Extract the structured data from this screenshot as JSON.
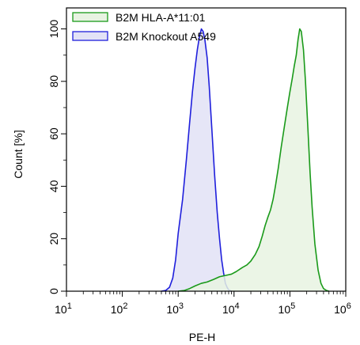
{
  "chart_data": {
    "type": "area",
    "xlabel": "PE-H",
    "ylabel": "Count [%]",
    "x_scale": "log",
    "xlim": [
      10,
      1000000
    ],
    "ylim": [
      0,
      108
    ],
    "grid": false,
    "legend_placement": "top-left",
    "x_ticks": [
      {
        "value": 10,
        "base": "10",
        "exp": "1"
      },
      {
        "value": 100,
        "base": "10",
        "exp": "2"
      },
      {
        "value": 1000,
        "base": "10",
        "exp": "3"
      },
      {
        "value": 10000,
        "base": "10",
        "exp": "4"
      },
      {
        "value": 100000,
        "base": "10",
        "exp": "5"
      },
      {
        "value": 1000000,
        "base": "10",
        "exp": "6"
      }
    ],
    "y_ticks": [
      {
        "value": 0,
        "label": "0"
      },
      {
        "value": 20,
        "label": "20"
      },
      {
        "value": 40,
        "label": "40"
      },
      {
        "value": 60,
        "label": "60"
      },
      {
        "value": 80,
        "label": "80"
      },
      {
        "value": 100,
        "label": "100"
      }
    ],
    "series": [
      {
        "name": "B2M HLA-A*11:01",
        "stroke": "#1a9a1a",
        "fill": "#e8f3e2",
        "points": [
          [
            1000,
            0
          ],
          [
            1300,
            0.3
          ],
          [
            1600,
            1
          ],
          [
            2000,
            2
          ],
          [
            2600,
            3
          ],
          [
            3300,
            3.5
          ],
          [
            4300,
            4.5
          ],
          [
            5500,
            5.5
          ],
          [
            7000,
            6
          ],
          [
            9000,
            6.5
          ],
          [
            11000,
            7.5
          ],
          [
            14000,
            9
          ],
          [
            17000,
            10
          ],
          [
            20000,
            11.5
          ],
          [
            24000,
            14
          ],
          [
            28000,
            17
          ],
          [
            32000,
            21
          ],
          [
            36000,
            25
          ],
          [
            40000,
            28
          ],
          [
            45000,
            31
          ],
          [
            50000,
            35
          ],
          [
            55000,
            40
          ],
          [
            62000,
            47
          ],
          [
            70000,
            55
          ],
          [
            80000,
            63
          ],
          [
            90000,
            70
          ],
          [
            100000,
            76
          ],
          [
            110000,
            81
          ],
          [
            120000,
            86
          ],
          [
            130000,
            90
          ],
          [
            140000,
            96
          ],
          [
            150000,
            100
          ],
          [
            160000,
            99
          ],
          [
            175000,
            92
          ],
          [
            190000,
            80
          ],
          [
            210000,
            62
          ],
          [
            230000,
            45
          ],
          [
            250000,
            32
          ],
          [
            280000,
            18
          ],
          [
            320000,
            8
          ],
          [
            360000,
            3
          ],
          [
            400000,
            1
          ],
          [
            450000,
            0.3
          ],
          [
            500000,
            0
          ]
        ]
      },
      {
        "name": "B2M Knockout A549",
        "stroke": "#1f1fdc",
        "fill": "#e2e2f6",
        "points": [
          [
            500,
            0
          ],
          [
            600,
            0.3
          ],
          [
            700,
            1.5
          ],
          [
            800,
            5
          ],
          [
            900,
            12
          ],
          [
            1000,
            22
          ],
          [
            1200,
            35
          ],
          [
            1400,
            50
          ],
          [
            1600,
            64
          ],
          [
            1800,
            76
          ],
          [
            2000,
            85
          ],
          [
            2200,
            92
          ],
          [
            2400,
            97
          ],
          [
            2600,
            100
          ],
          [
            2800,
            99
          ],
          [
            3000,
            96
          ],
          [
            3300,
            89
          ],
          [
            3600,
            78
          ],
          [
            4000,
            62
          ],
          [
            4500,
            44
          ],
          [
            5000,
            30
          ],
          [
            5500,
            20
          ],
          [
            6000,
            12
          ],
          [
            6500,
            7
          ],
          [
            7000,
            3
          ],
          [
            7500,
            1.5
          ],
          [
            8000,
            0.5
          ],
          [
            9000,
            0
          ]
        ]
      }
    ]
  }
}
